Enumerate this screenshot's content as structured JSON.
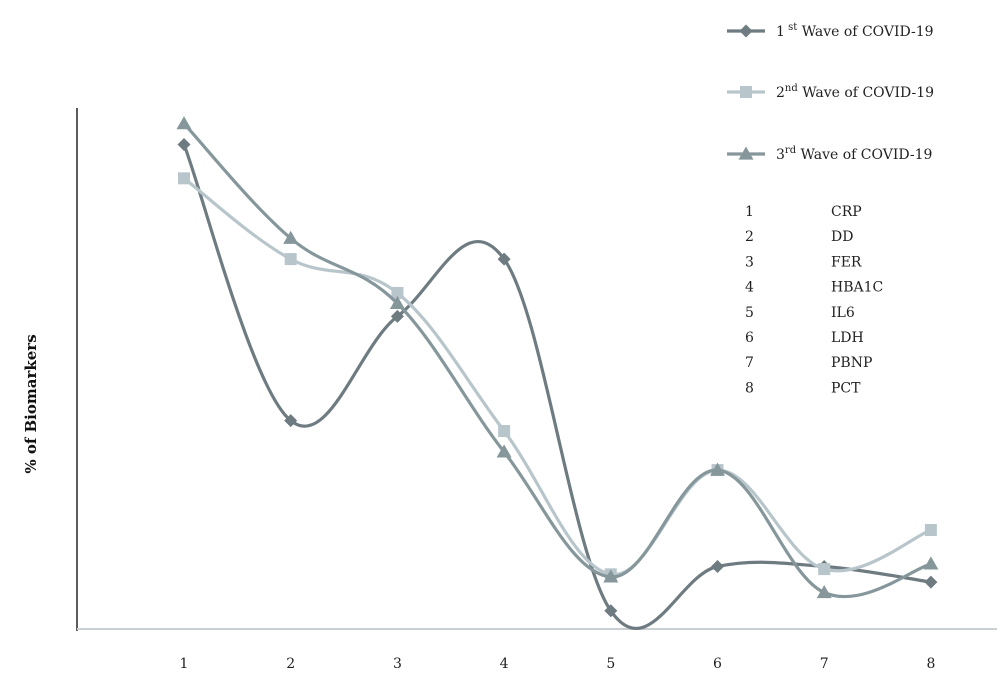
{
  "chart_data": {
    "type": "line",
    "title": "",
    "xlabel": "",
    "ylabel": "% of Biomarkers",
    "smooth": true,
    "grid": false,
    "categories": [
      "1",
      "2",
      "3",
      "4",
      "5",
      "6",
      "7",
      "8"
    ],
    "ylim": [
      0,
      100
    ],
    "series": [
      {
        "name": "1 st Wave of COVID-19",
        "name_parts": [
          "1",
          " st",
          " Wave of COVID-19"
        ],
        "marker": "diamond",
        "color": "#6e7b80",
        "values": [
          93,
          40,
          60,
          71,
          3.5,
          12,
          12,
          9
        ]
      },
      {
        "name": "2nd Wave of COVID-19",
        "name_parts": [
          "2",
          "nd",
          " Wave of COVID-19"
        ],
        "marker": "square",
        "color": "#b8c6cc",
        "values": [
          86.5,
          71,
          64.5,
          38,
          10.5,
          30.5,
          11.5,
          19
        ]
      },
      {
        "name": "3rd Wave of COVID-19",
        "name_parts": [
          "3",
          "rd",
          " Wave of COVID-19"
        ],
        "marker": "triangle",
        "color": "#86979c",
        "values": [
          97,
          75,
          62.5,
          34,
          10,
          30.5,
          7,
          12.5
        ]
      }
    ],
    "key": [
      {
        "num": "1",
        "label": "CRP"
      },
      {
        "num": "2",
        "label": "DD"
      },
      {
        "num": "3",
        "label": "FER"
      },
      {
        "num": "4",
        "label": "HBA1C"
      },
      {
        "num": "5",
        "label": "IL6"
      },
      {
        "num": "6",
        "label": "LDH"
      },
      {
        "num": "7",
        "label": "PBNP"
      },
      {
        "num": "8",
        "label": "PCT"
      }
    ]
  }
}
